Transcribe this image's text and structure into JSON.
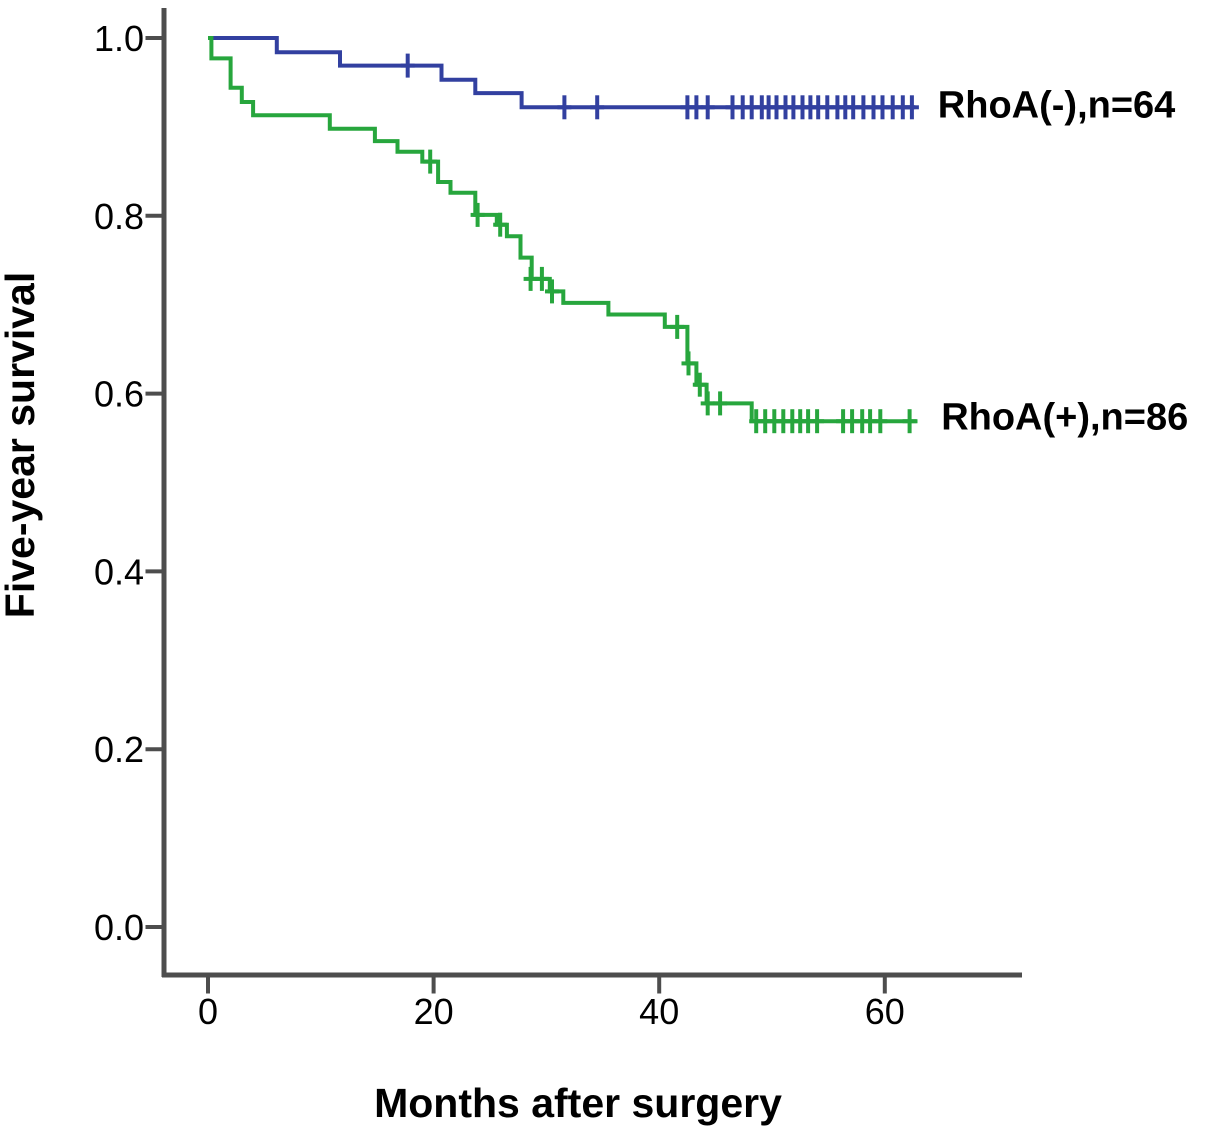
{
  "figure": {
    "background": "#ffffff",
    "kind": "Kaplan-Meier survival plot"
  },
  "chart_data": {
    "type": "line",
    "subtype": "kaplan-meier-step",
    "title": "",
    "xlabel": "Months after surgery",
    "ylabel": "Five-year survival",
    "grid": false,
    "xlim": [
      0,
      72
    ],
    "ylim": [
      0.0,
      1.0
    ],
    "xticks": [
      {
        "v": 0,
        "label": "0"
      },
      {
        "v": 20,
        "label": "20"
      },
      {
        "v": 40,
        "label": "40"
      },
      {
        "v": 60,
        "label": "60"
      }
    ],
    "yticks": [
      {
        "v": 0.0,
        "label": "0.0"
      },
      {
        "v": 0.2,
        "label": "0.2"
      },
      {
        "v": 0.4,
        "label": "0.4"
      },
      {
        "v": 0.6,
        "label": "0.6"
      },
      {
        "v": 0.8,
        "label": "0.8"
      },
      {
        "v": 1.0,
        "label": "1.0"
      }
    ],
    "axis_color": "#4d4d4d",
    "series": [
      {
        "name": "RhoA-negative",
        "label": "RhoA(-),n=64",
        "n": 64,
        "color": "#3240a0",
        "label_at": [
          64.7,
          0.925
        ],
        "steps": [
          [
            0,
            1.0
          ],
          [
            6.1,
            0.984
          ],
          [
            11.7,
            0.969
          ],
          [
            20.7,
            0.953
          ],
          [
            23.7,
            0.938
          ],
          [
            27.8,
            0.922
          ],
          [
            62.7,
            0.922
          ]
        ],
        "censors": [
          [
            17.7,
            0.969
          ],
          [
            31.6,
            0.922
          ],
          [
            34.5,
            0.922
          ],
          [
            42.5,
            0.922
          ],
          [
            43.3,
            0.922
          ],
          [
            44.3,
            0.922
          ],
          [
            46.5,
            0.922
          ],
          [
            47.4,
            0.922
          ],
          [
            48.2,
            0.922
          ],
          [
            49.1,
            0.922
          ],
          [
            49.7,
            0.922
          ],
          [
            50.4,
            0.922
          ],
          [
            51.2,
            0.922
          ],
          [
            51.9,
            0.922
          ],
          [
            52.7,
            0.922
          ],
          [
            53.4,
            0.922
          ],
          [
            54.1,
            0.922
          ],
          [
            54.9,
            0.922
          ],
          [
            55.8,
            0.922
          ],
          [
            56.5,
            0.922
          ],
          [
            57.2,
            0.922
          ],
          [
            58.1,
            0.922
          ],
          [
            59.0,
            0.922
          ],
          [
            59.8,
            0.922
          ],
          [
            60.7,
            0.922
          ],
          [
            61.6,
            0.922
          ],
          [
            62.4,
            0.922
          ]
        ]
      },
      {
        "name": "RhoA-positive",
        "label": "RhoA(+),n=86",
        "n": 86,
        "color": "#27a63d",
        "label_at": [
          65.0,
          0.574
        ],
        "steps": [
          [
            0,
            1.0
          ],
          [
            0.3,
            0.977
          ],
          [
            2.0,
            0.944
          ],
          [
            3.0,
            0.928
          ],
          [
            4.0,
            0.913
          ],
          [
            10.8,
            0.898
          ],
          [
            14.8,
            0.884
          ],
          [
            16.8,
            0.872
          ],
          [
            19.0,
            0.861
          ],
          [
            20.4,
            0.838
          ],
          [
            21.5,
            0.826
          ],
          [
            23.7,
            0.801
          ],
          [
            25.6,
            0.79
          ],
          [
            26.5,
            0.777
          ],
          [
            27.7,
            0.753
          ],
          [
            28.7,
            0.729
          ],
          [
            30.3,
            0.715
          ],
          [
            31.5,
            0.702
          ],
          [
            35.5,
            0.689
          ],
          [
            40.5,
            0.675
          ],
          [
            42.5,
            0.634
          ],
          [
            43.3,
            0.61
          ],
          [
            44.2,
            0.589
          ],
          [
            48.2,
            0.569
          ],
          [
            62.9,
            0.569
          ]
        ],
        "censors": [
          [
            19.7,
            0.861
          ],
          [
            23.9,
            0.801
          ],
          [
            25.9,
            0.79
          ],
          [
            28.6,
            0.729
          ],
          [
            29.6,
            0.729
          ],
          [
            30.5,
            0.715
          ],
          [
            41.6,
            0.675
          ],
          [
            42.6,
            0.634
          ],
          [
            43.6,
            0.61
          ],
          [
            44.3,
            0.589
          ],
          [
            45.4,
            0.589
          ],
          [
            48.6,
            0.569
          ],
          [
            49.4,
            0.569
          ],
          [
            50.2,
            0.569
          ],
          [
            51.0,
            0.569
          ],
          [
            51.8,
            0.569
          ],
          [
            52.5,
            0.569
          ],
          [
            53.2,
            0.569
          ],
          [
            54.0,
            0.569
          ],
          [
            56.3,
            0.569
          ],
          [
            57.1,
            0.569
          ],
          [
            58.0,
            0.569
          ],
          [
            58.7,
            0.569
          ],
          [
            59.6,
            0.569
          ],
          [
            62.2,
            0.569
          ]
        ]
      }
    ]
  }
}
